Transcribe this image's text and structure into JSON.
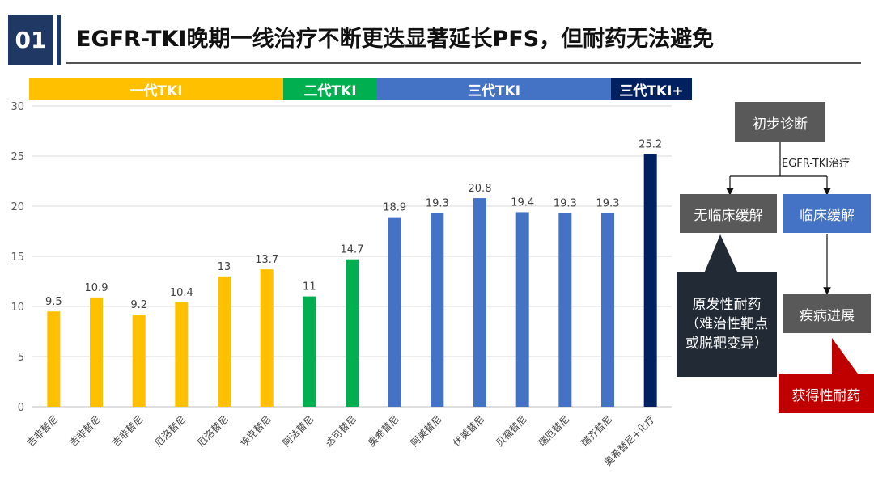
{
  "header": {
    "slide_number": "01",
    "title": "EGFR-TKI晚期一线治疗不断更迭显著延长PFS，但耐药无法避免"
  },
  "generation_bands": [
    {
      "label": "一代TKI",
      "color": "#ffc000"
    },
    {
      "label": "二代TKI",
      "color": "#00b050"
    },
    {
      "label": "三代TKI",
      "color": "#4472c4"
    },
    {
      "label": "三代TKI+",
      "color": "#002060"
    }
  ],
  "chart_data": {
    "type": "bar",
    "title": "",
    "xlabel": "",
    "ylabel": "",
    "ylim": [
      0,
      30
    ],
    "yticks": [
      "0",
      "5",
      "10",
      "15",
      "20",
      "25",
      "30"
    ],
    "categories": [
      "吉非替尼",
      "吉非替尼",
      "吉非替尼",
      "厄洛替尼",
      "厄洛替尼",
      "埃克替尼",
      "阿法替尼",
      "达可替尼",
      "奥希替尼",
      "阿美替尼",
      "伏美替尼",
      "贝福替尼",
      "瑞厄替尼",
      "瑞齐替尼",
      "奥希替尼+化疗"
    ],
    "values": [
      9.5,
      10.9,
      9.2,
      10.4,
      13,
      13.7,
      11,
      14.7,
      18.9,
      19.3,
      20.8,
      19.4,
      19.3,
      19.3,
      25.2
    ],
    "value_labels": [
      "9.5",
      "10.9",
      "9.2",
      "10.4",
      "13",
      "13.7",
      "11",
      "14.7",
      "18.9",
      "19.3",
      "20.8",
      "19.4",
      "19.3",
      "19.3",
      "25.2"
    ],
    "generation": [
      "一代TKI",
      "一代TKI",
      "一代TKI",
      "一代TKI",
      "一代TKI",
      "一代TKI",
      "二代TKI",
      "二代TKI",
      "三代TKI",
      "三代TKI",
      "三代TKI",
      "三代TKI",
      "三代TKI",
      "三代TKI",
      "三代TKI+"
    ],
    "colors": [
      "#ffc000",
      "#ffc000",
      "#ffc000",
      "#ffc000",
      "#ffc000",
      "#ffc000",
      "#00b050",
      "#00b050",
      "#4472c4",
      "#4472c4",
      "#4472c4",
      "#4472c4",
      "#4472c4",
      "#4472c4",
      "#002060"
    ],
    "grid": true
  },
  "flowchart": {
    "start": "初步诊断",
    "edge_label": "EGFR-TKI治疗",
    "no_response": "无临床缓解",
    "response": "临床缓解",
    "primary_resistance": "原发性耐药（难治性靶点或脱靶变异）",
    "progression": "疾病进展",
    "acquired_resistance": "获得性耐药"
  },
  "colors": {
    "title_navy": "#1f3864",
    "box_gray": "#595959",
    "box_blue": "#4472c4",
    "box_dark": "#222a35",
    "box_red": "#c00000"
  }
}
